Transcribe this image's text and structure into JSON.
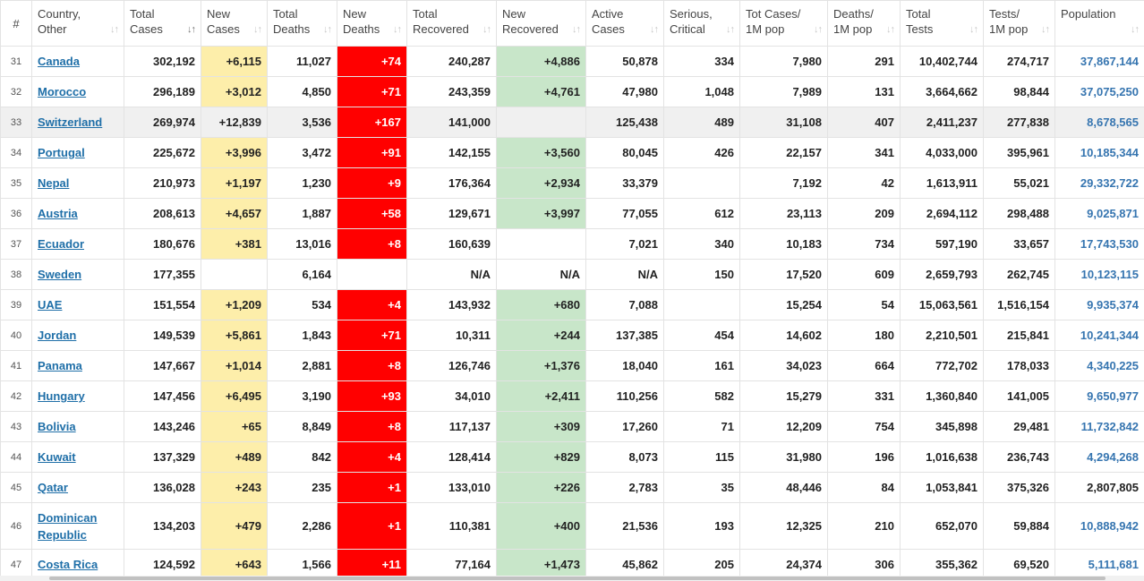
{
  "columns": [
    {
      "key": "idx",
      "label": "#"
    },
    {
      "key": "country",
      "label": "Country,\nOther"
    },
    {
      "key": "total_cases",
      "label": "Total\nCases"
    },
    {
      "key": "new_cases",
      "label": "New\nCases"
    },
    {
      "key": "total_deaths",
      "label": "Total\nDeaths"
    },
    {
      "key": "new_deaths",
      "label": "New\nDeaths"
    },
    {
      "key": "total_recovered",
      "label": "Total\nRecovered"
    },
    {
      "key": "new_recovered",
      "label": "New\nRecovered"
    },
    {
      "key": "active_cases",
      "label": "Active\nCases"
    },
    {
      "key": "serious",
      "label": "Serious,\nCritical"
    },
    {
      "key": "cases_per_1m",
      "label": "Tot Cases/\n1M pop"
    },
    {
      "key": "deaths_per_1m",
      "label": "Deaths/\n1M pop"
    },
    {
      "key": "total_tests",
      "label": "Total\nTests"
    },
    {
      "key": "tests_per_1m",
      "label": "Tests/\n1M pop"
    },
    {
      "key": "population",
      "label": "Population"
    }
  ],
  "sorted_column": "total_cases",
  "colors": {
    "new_cases_bg": "#fdeeaa",
    "new_deaths_bg": "#ff0000",
    "new_recovered_bg": "#c8e6c9",
    "link": "#1f6fa8",
    "population": "#3675b0"
  },
  "rows": [
    {
      "idx": "31",
      "country": "Canada",
      "total_cases": "302,192",
      "new_cases": "+6,115",
      "total_deaths": "11,027",
      "new_deaths": "+74",
      "total_recovered": "240,287",
      "new_recovered": "+4,886",
      "active_cases": "50,878",
      "serious": "334",
      "cases_per_1m": "7,980",
      "deaths_per_1m": "291",
      "total_tests": "10,402,744",
      "tests_per_1m": "274,717",
      "population": "37,867,144",
      "pop_link": true
    },
    {
      "idx": "32",
      "country": "Morocco",
      "total_cases": "296,189",
      "new_cases": "+3,012",
      "total_deaths": "4,850",
      "new_deaths": "+71",
      "total_recovered": "243,359",
      "new_recovered": "+4,761",
      "active_cases": "47,980",
      "serious": "1,048",
      "cases_per_1m": "7,989",
      "deaths_per_1m": "131",
      "total_tests": "3,664,662",
      "tests_per_1m": "98,844",
      "population": "37,075,250",
      "pop_link": true
    },
    {
      "idx": "33",
      "country": "Switzerland",
      "total_cases": "269,974",
      "new_cases": "+12,839",
      "total_deaths": "3,536",
      "new_deaths": "+167",
      "total_recovered": "141,000",
      "new_recovered": "",
      "active_cases": "125,438",
      "serious": "489",
      "cases_per_1m": "31,108",
      "deaths_per_1m": "407",
      "total_tests": "2,411,237",
      "tests_per_1m": "277,838",
      "population": "8,678,565",
      "pop_link": true,
      "highlight": true
    },
    {
      "idx": "34",
      "country": "Portugal",
      "total_cases": "225,672",
      "new_cases": "+3,996",
      "total_deaths": "3,472",
      "new_deaths": "+91",
      "total_recovered": "142,155",
      "new_recovered": "+3,560",
      "active_cases": "80,045",
      "serious": "426",
      "cases_per_1m": "22,157",
      "deaths_per_1m": "341",
      "total_tests": "4,033,000",
      "tests_per_1m": "395,961",
      "population": "10,185,344",
      "pop_link": true
    },
    {
      "idx": "35",
      "country": "Nepal",
      "total_cases": "210,973",
      "new_cases": "+1,197",
      "total_deaths": "1,230",
      "new_deaths": "+9",
      "total_recovered": "176,364",
      "new_recovered": "+2,934",
      "active_cases": "33,379",
      "serious": "",
      "cases_per_1m": "7,192",
      "deaths_per_1m": "42",
      "total_tests": "1,613,911",
      "tests_per_1m": "55,021",
      "population": "29,332,722",
      "pop_link": true
    },
    {
      "idx": "36",
      "country": "Austria",
      "total_cases": "208,613",
      "new_cases": "+4,657",
      "total_deaths": "1,887",
      "new_deaths": "+58",
      "total_recovered": "129,671",
      "new_recovered": "+3,997",
      "active_cases": "77,055",
      "serious": "612",
      "cases_per_1m": "23,113",
      "deaths_per_1m": "209",
      "total_tests": "2,694,112",
      "tests_per_1m": "298,488",
      "population": "9,025,871",
      "pop_link": true
    },
    {
      "idx": "37",
      "country": "Ecuador",
      "total_cases": "180,676",
      "new_cases": "+381",
      "total_deaths": "13,016",
      "new_deaths": "+8",
      "total_recovered": "160,639",
      "new_recovered": "",
      "active_cases": "7,021",
      "serious": "340",
      "cases_per_1m": "10,183",
      "deaths_per_1m": "734",
      "total_tests": "597,190",
      "tests_per_1m": "33,657",
      "population": "17,743,530",
      "pop_link": true,
      "no_rec_bg": true
    },
    {
      "idx": "38",
      "country": "Sweden",
      "total_cases": "177,355",
      "new_cases": "",
      "total_deaths": "6,164",
      "new_deaths": "",
      "total_recovered": "N/A",
      "new_recovered": "N/A",
      "active_cases": "N/A",
      "serious": "150",
      "cases_per_1m": "17,520",
      "deaths_per_1m": "609",
      "total_tests": "2,659,793",
      "tests_per_1m": "262,745",
      "population": "10,123,115",
      "pop_link": true,
      "no_case_bg": true,
      "no_death_bg": true,
      "no_rec_bg": true
    },
    {
      "idx": "39",
      "country": "UAE",
      "total_cases": "151,554",
      "new_cases": "+1,209",
      "total_deaths": "534",
      "new_deaths": "+4",
      "total_recovered": "143,932",
      "new_recovered": "+680",
      "active_cases": "7,088",
      "serious": "",
      "cases_per_1m": "15,254",
      "deaths_per_1m": "54",
      "total_tests": "15,063,561",
      "tests_per_1m": "1,516,154",
      "population": "9,935,374",
      "pop_link": true
    },
    {
      "idx": "40",
      "country": "Jordan",
      "total_cases": "149,539",
      "new_cases": "+5,861",
      "total_deaths": "1,843",
      "new_deaths": "+71",
      "total_recovered": "10,311",
      "new_recovered": "+244",
      "active_cases": "137,385",
      "serious": "454",
      "cases_per_1m": "14,602",
      "deaths_per_1m": "180",
      "total_tests": "2,210,501",
      "tests_per_1m": "215,841",
      "population": "10,241,344",
      "pop_link": true
    },
    {
      "idx": "41",
      "country": "Panama",
      "total_cases": "147,667",
      "new_cases": "+1,014",
      "total_deaths": "2,881",
      "new_deaths": "+8",
      "total_recovered": "126,746",
      "new_recovered": "+1,376",
      "active_cases": "18,040",
      "serious": "161",
      "cases_per_1m": "34,023",
      "deaths_per_1m": "664",
      "total_tests": "772,702",
      "tests_per_1m": "178,033",
      "population": "4,340,225",
      "pop_link": true
    },
    {
      "idx": "42",
      "country": "Hungary",
      "total_cases": "147,456",
      "new_cases": "+6,495",
      "total_deaths": "3,190",
      "new_deaths": "+93",
      "total_recovered": "34,010",
      "new_recovered": "+2,411",
      "active_cases": "110,256",
      "serious": "582",
      "cases_per_1m": "15,279",
      "deaths_per_1m": "331",
      "total_tests": "1,360,840",
      "tests_per_1m": "141,005",
      "population": "9,650,977",
      "pop_link": true
    },
    {
      "idx": "43",
      "country": "Bolivia",
      "total_cases": "143,246",
      "new_cases": "+65",
      "total_deaths": "8,849",
      "new_deaths": "+8",
      "total_recovered": "117,137",
      "new_recovered": "+309",
      "active_cases": "17,260",
      "serious": "71",
      "cases_per_1m": "12,209",
      "deaths_per_1m": "754",
      "total_tests": "345,898",
      "tests_per_1m": "29,481",
      "population": "11,732,842",
      "pop_link": true
    },
    {
      "idx": "44",
      "country": "Kuwait",
      "total_cases": "137,329",
      "new_cases": "+489",
      "total_deaths": "842",
      "new_deaths": "+4",
      "total_recovered": "128,414",
      "new_recovered": "+829",
      "active_cases": "8,073",
      "serious": "115",
      "cases_per_1m": "31,980",
      "deaths_per_1m": "196",
      "total_tests": "1,016,638",
      "tests_per_1m": "236,743",
      "population": "4,294,268",
      "pop_link": true
    },
    {
      "idx": "45",
      "country": "Qatar",
      "total_cases": "136,028",
      "new_cases": "+243",
      "total_deaths": "235",
      "new_deaths": "+1",
      "total_recovered": "133,010",
      "new_recovered": "+226",
      "active_cases": "2,783",
      "serious": "35",
      "cases_per_1m": "48,446",
      "deaths_per_1m": "84",
      "total_tests": "1,053,841",
      "tests_per_1m": "375,326",
      "population": "2,807,805",
      "pop_link": false
    },
    {
      "idx": "46",
      "country": "Dominican Republic",
      "total_cases": "134,203",
      "new_cases": "+479",
      "total_deaths": "2,286",
      "new_deaths": "+1",
      "total_recovered": "110,381",
      "new_recovered": "+400",
      "active_cases": "21,536",
      "serious": "193",
      "cases_per_1m": "12,325",
      "deaths_per_1m": "210",
      "total_tests": "652,070",
      "tests_per_1m": "59,884",
      "population": "10,888,942",
      "pop_link": true,
      "tall": true
    },
    {
      "idx": "47",
      "country": "Costa Rica",
      "total_cases": "124,592",
      "new_cases": "+643",
      "total_deaths": "1,566",
      "new_deaths": "+11",
      "total_recovered": "77,164",
      "new_recovered": "+1,473",
      "active_cases": "45,862",
      "serious": "205",
      "cases_per_1m": "24,374",
      "deaths_per_1m": "306",
      "total_tests": "355,362",
      "tests_per_1m": "69,520",
      "population": "5,111,681",
      "pop_link": true
    }
  ]
}
